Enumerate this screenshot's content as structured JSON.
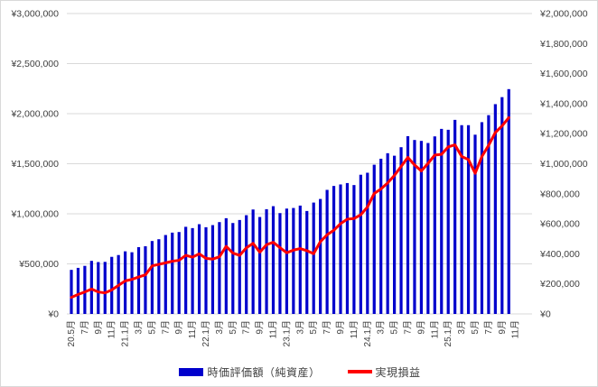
{
  "chart_data": {
    "type": "bar",
    "subtype": "combo-bar-line-dual-axis",
    "title": "",
    "x_labels": [
      "20.5月",
      "7月",
      "9月",
      "11月",
      "21.1月",
      "3月",
      "5月",
      "7月",
      "9月",
      "11月",
      "22.1月",
      "3月",
      "5月",
      "7月",
      "9月",
      "11月",
      "23.1月",
      "3月",
      "5月",
      "7月",
      "9月",
      "11月",
      "24.1月",
      "3月",
      "5月",
      "7月",
      "9月",
      "11月",
      "25.1月",
      "3月",
      "5月",
      "7月",
      "9月",
      "11月"
    ],
    "x_label_every_n_months": 2,
    "series": [
      {
        "name": "時価評価額（純資産）",
        "type": "bar",
        "axis": "left",
        "color": "#0000CC",
        "values": [
          440000,
          460000,
          480000,
          530000,
          518000,
          520000,
          570000,
          588000,
          625000,
          616000,
          667000,
          676000,
          728000,
          746000,
          788000,
          812000,
          818000,
          870000,
          857000,
          896000,
          866000,
          887000,
          917000,
          956000,
          908000,
          938000,
          986000,
          1043000,
          968000,
          1046000,
          1076000,
          1007000,
          1052000,
          1058000,
          1082000,
          1028000,
          1112000,
          1148000,
          1239000,
          1278000,
          1293000,
          1307000,
          1287000,
          1390000,
          1410000,
          1490000,
          1550000,
          1605000,
          1580000,
          1665000,
          1775000,
          1737000,
          1728000,
          1707000,
          1773000,
          1848000,
          1839000,
          1938000,
          1885000,
          1885000,
          1790000,
          1915000,
          1985000,
          2095000,
          2165000,
          2245000
        ]
      },
      {
        "name": "実現損益",
        "type": "line",
        "axis": "right",
        "color": "#FF0000",
        "values": [
          110000,
          130000,
          146000,
          166000,
          146000,
          140000,
          160000,
          190000,
          220000,
          230000,
          246000,
          260000,
          320000,
          330000,
          340000,
          351000,
          357000,
          390000,
          378000,
          400000,
          370000,
          365000,
          380000,
          450000,
          405000,
          390000,
          440000,
          470000,
          411000,
          461000,
          477000,
          441000,
          407000,
          425000,
          435000,
          421000,
          401000,
          481000,
          527000,
          557000,
          601000,
          631000,
          635000,
          660000,
          712000,
          802000,
          832000,
          872000,
          922000,
          982000,
          1042000,
          992000,
          952000,
          1002000,
          1058000,
          1062000,
          1112000,
          1126000,
          1048000,
          1028000,
          936000,
          1048000,
          1122000,
          1208000,
          1252000,
          1307000
        ]
      }
    ],
    "left_axis": {
      "min": 0,
      "max": 3000000,
      "tick_step": 500000,
      "tick_labels": [
        "¥0",
        "¥500,000",
        "¥1,000,000",
        "¥1,500,000",
        "¥2,000,000",
        "¥2,500,000",
        "¥3,000,000"
      ]
    },
    "right_axis": {
      "min": 0,
      "max": 2000000,
      "tick_step": 200000,
      "tick_labels": [
        "¥0",
        "¥200,000",
        "¥400,000",
        "¥600,000",
        "¥800,000",
        "¥1,000,000",
        "¥1,200,000",
        "¥1,400,000",
        "¥1,600,000",
        "¥1,800,000",
        "¥2,000,000"
      ]
    },
    "grid": "horizontal",
    "legend_position": "bottom-center",
    "colors": {
      "grid": "#D9D9D9",
      "tick_text": "#404040",
      "background": "#FFFFFF"
    }
  }
}
